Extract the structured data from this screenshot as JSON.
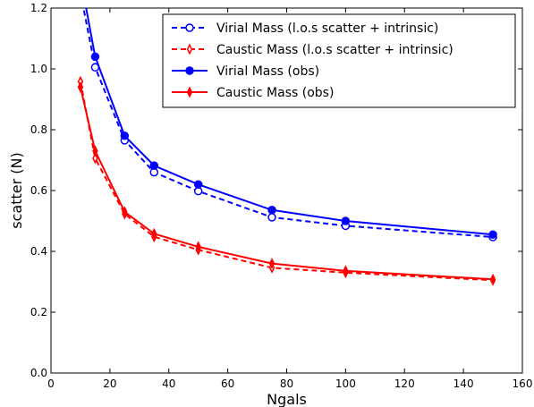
{
  "chart_data": {
    "type": "line",
    "title": "",
    "xlabel": "Ngals",
    "ylabel": "scatter (N)",
    "xlim": [
      0,
      160
    ],
    "ylim": [
      0.0,
      1.2
    ],
    "xticks": [
      "0",
      "20",
      "40",
      "60",
      "80",
      "100",
      "120",
      "140",
      "160"
    ],
    "yticks": [
      "0.0",
      "0.2",
      "0.4",
      "0.6",
      "0.8",
      "1.0",
      "1.2"
    ],
    "grid": false,
    "legend_position": "top-right",
    "series": [
      {
        "name": "Virial Mass (l.o.s scatter + intrinsic)",
        "color": "#0000ff",
        "line": "dashed",
        "marker": "open-circle",
        "x": [
          10,
          15,
          25,
          35,
          50,
          75,
          100,
          150
        ],
        "y": [
          1.25,
          1.005,
          0.765,
          0.66,
          0.598,
          0.512,
          0.484,
          0.447
        ]
      },
      {
        "name": "Caustic Mass (l.o.s scatter + intrinsic)",
        "color": "#ff0000",
        "line": "dashed",
        "marker": "open-diamond",
        "x": [
          10,
          15,
          25,
          35,
          50,
          75,
          100,
          150
        ],
        "y": [
          0.958,
          0.706,
          0.523,
          0.448,
          0.405,
          0.346,
          0.33,
          0.305
        ]
      },
      {
        "name": "Virial Mass (obs)",
        "color": "#0000ff",
        "line": "solid",
        "marker": "filled-circle",
        "x": [
          10,
          15,
          25,
          35,
          50,
          75,
          100,
          150
        ],
        "y": [
          1.3,
          1.04,
          0.78,
          0.682,
          0.62,
          0.536,
          0.5,
          0.455
        ]
      },
      {
        "name": "Caustic Mass (obs)",
        "color": "#ff0000",
        "line": "solid",
        "marker": "filled-diamond",
        "x": [
          10,
          15,
          25,
          35,
          50,
          75,
          100,
          150
        ],
        "y": [
          0.94,
          0.73,
          0.53,
          0.458,
          0.415,
          0.36,
          0.336,
          0.308
        ]
      }
    ]
  }
}
